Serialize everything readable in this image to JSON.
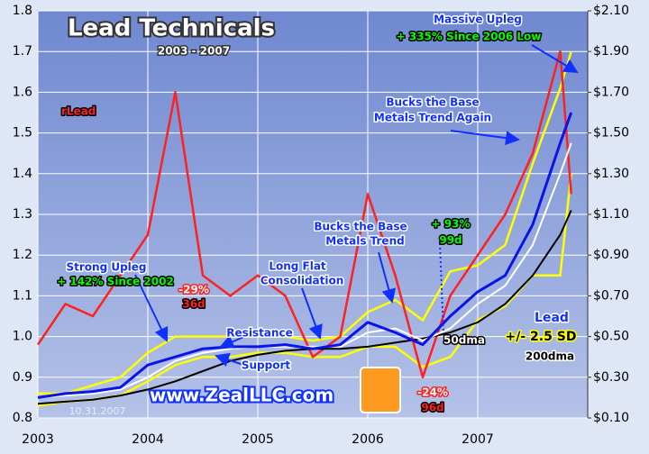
{
  "chart_data": {
    "type": "line",
    "title": "Lead Technicals",
    "subtitle": "2003 - 2007",
    "watermark": "www.ZealLLC.com",
    "date_stamp": "10.31.2007",
    "x": [
      2003.0,
      2003.25,
      2003.5,
      2003.75,
      2004.0,
      2004.25,
      2004.5,
      2004.75,
      2005.0,
      2005.25,
      2005.5,
      2005.75,
      2006.0,
      2006.25,
      2006.5,
      2006.75,
      2007.0,
      2007.25,
      2007.5,
      2007.75,
      2007.85
    ],
    "xlim": [
      2003,
      2008
    ],
    "xticks": [
      2003,
      2004,
      2005,
      2006,
      2007
    ],
    "ylim": [
      0.8,
      1.8
    ],
    "yticks": [
      {
        "value": 0.8,
        "label": "0.8"
      },
      0.9,
      {
        "value": 1,
        "label": "1.0"
      },
      1.1,
      1.2,
      1.3,
      1.4,
      1.5,
      1.6,
      1.7,
      1.8
    ],
    "y2lim": [
      0.1,
      2.1
    ],
    "y2ticks": [
      {
        "value": 0.1,
        "label": "$0.10"
      },
      {
        "value": 0.3,
        "label": "$0.30"
      },
      {
        "value": 0.5,
        "label": "$0.50"
      },
      {
        "value": 0.7,
        "label": "$0.70"
      },
      {
        "value": 0.9,
        "label": "$0.90"
      },
      {
        "value": 1.1,
        "label": "$1.10"
      },
      {
        "value": 1.3,
        "label": "$1.30"
      },
      {
        "value": 1.5,
        "label": "$1.50"
      },
      {
        "value": 1.7,
        "label": "$1.70"
      },
      {
        "value": 1.9,
        "label": "$1.90"
      },
      {
        "value": 2.1,
        "label": "$2.10"
      }
    ],
    "grid": true,
    "series": [
      {
        "name": "rLead",
        "color": "#ff2020",
        "values": [
          0.98,
          1.08,
          1.05,
          1.15,
          1.25,
          1.6,
          1.15,
          1.1,
          1.15,
          1.1,
          0.95,
          1.0,
          1.35,
          1.15,
          0.9,
          1.1,
          1.2,
          1.3,
          1.45,
          1.7,
          1.35
        ]
      },
      {
        "name": "Lead",
        "color": "#0a14e6",
        "axis": "y2",
        "values": [
          0.2,
          0.22,
          0.23,
          0.25,
          0.36,
          0.4,
          0.44,
          0.45,
          0.45,
          0.46,
          0.44,
          0.46,
          0.57,
          0.52,
          0.46,
          0.6,
          0.72,
          0.8,
          1.05,
          1.45,
          1.6
        ]
      },
      {
        "name": "50dma",
        "color": "#ffffff",
        "axis": "y2",
        "values": [
          0.2,
          0.21,
          0.22,
          0.24,
          0.3,
          0.38,
          0.42,
          0.44,
          0.45,
          0.45,
          0.45,
          0.45,
          0.52,
          0.54,
          0.48,
          0.54,
          0.66,
          0.75,
          0.95,
          1.3,
          1.45
        ]
      },
      {
        "name": "200dma",
        "color": "#000000",
        "axis": "y2",
        "values": [
          0.17,
          0.18,
          0.19,
          0.21,
          0.24,
          0.28,
          0.33,
          0.38,
          0.41,
          0.43,
          0.44,
          0.44,
          0.45,
          0.47,
          0.49,
          0.52,
          0.57,
          0.66,
          0.8,
          1.0,
          1.12
        ]
      }
    ],
    "bands": {
      "name": "+/- 2.5 SD",
      "color": "#ffff00",
      "axis": "y2",
      "upper": [
        0.22,
        0.22,
        0.26,
        0.3,
        0.42,
        0.5,
        0.5,
        0.5,
        0.5,
        0.5,
        0.48,
        0.5,
        0.62,
        0.68,
        0.58,
        0.82,
        0.85,
        0.95,
        1.35,
        1.72,
        1.9
      ],
      "lower": [
        0.16,
        0.18,
        0.19,
        0.21,
        0.28,
        0.36,
        0.4,
        0.4,
        0.42,
        0.42,
        0.4,
        0.4,
        0.45,
        0.45,
        0.35,
        0.4,
        0.58,
        0.65,
        0.8,
        0.8,
        1.3
      ]
    },
    "annotations": [
      "Strong Upleg",
      "+ 142% Since 2002",
      "-29%",
      "36d",
      "Resistance",
      "Support",
      "Long Flat",
      "Consolidation",
      "Bucks the Base",
      "Metals Trend",
      "+ 93%",
      "99d",
      "-24%",
      "96d",
      "Bucks the Base",
      "Metals Trend Again",
      "Massive Upleg",
      "+ 335% Since 2006 Low"
    ]
  }
}
